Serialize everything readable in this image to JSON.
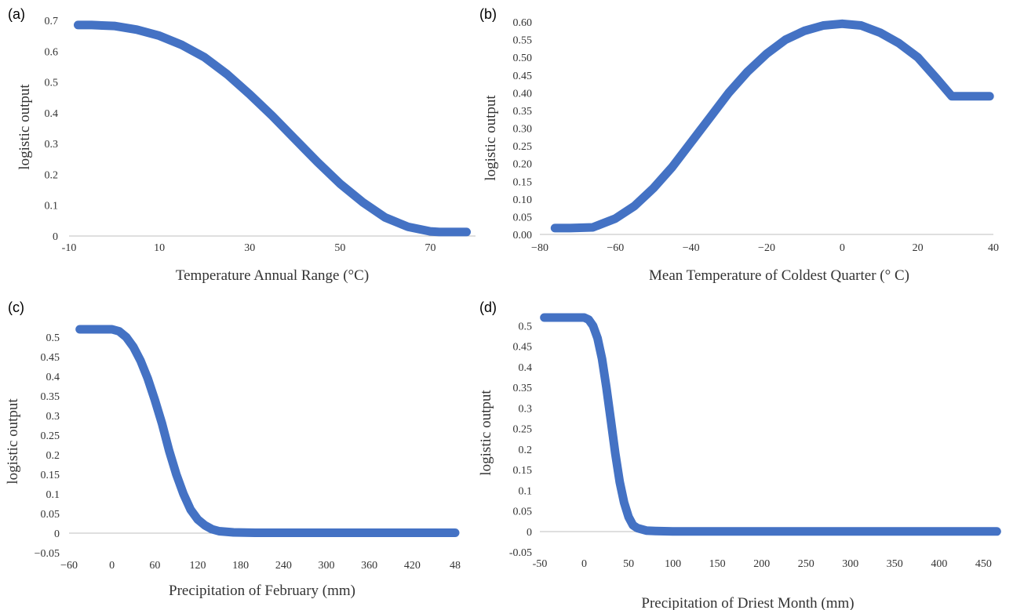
{
  "chart_data": [
    {
      "type": "line",
      "panel_label": "(a)",
      "xlabel": "Temperature Annual Range (°C)",
      "ylabel": "logistic output",
      "xlim": [
        -10,
        80
      ],
      "ylim": [
        0,
        0.7
      ],
      "x_ticks": [
        "-10",
        "10",
        "30",
        "50",
        "70"
      ],
      "y_ticks": [
        "0",
        "0.1",
        "0.2",
        "0.3",
        "0.4",
        "0.5",
        "0.6",
        "0.7"
      ],
      "color": "#4472c4",
      "series": [
        {
          "x": [
            -8,
            -5,
            0,
            5,
            10,
            15,
            20,
            25,
            30,
            35,
            40,
            45,
            50,
            55,
            60,
            65,
            70,
            72,
            75,
            78
          ],
          "y": [
            0.685,
            0.685,
            0.682,
            0.67,
            0.65,
            0.62,
            0.58,
            0.525,
            0.46,
            0.39,
            0.315,
            0.24,
            0.17,
            0.11,
            0.06,
            0.03,
            0.015,
            0.013,
            0.013,
            0.013
          ]
        }
      ]
    },
    {
      "type": "line",
      "panel_label": "(b)",
      "xlabel": "Mean Temperature of Coldest Quarter (° C)",
      "ylabel": "logistic output",
      "xlim": [
        -80,
        40
      ],
      "ylim": [
        0,
        0.6
      ],
      "x_ticks": [
        "−80",
        "−60",
        "−40",
        "−20",
        "0",
        "20",
        "40"
      ],
      "y_ticks": [
        "0.00",
        "0.05",
        "0.10",
        "0.15",
        "0.20",
        "0.25",
        "0.30",
        "0.35",
        "0.40",
        "0.45",
        "0.50",
        "0.55",
        "0.60"
      ],
      "color": "#4472c4",
      "series": [
        {
          "x": [
            -76,
            -72,
            -66,
            -60,
            -55,
            -50,
            -45,
            -40,
            -35,
            -30,
            -25,
            -20,
            -15,
            -10,
            -5,
            0,
            5,
            10,
            15,
            20,
            25,
            29,
            33,
            39
          ],
          "y": [
            0.018,
            0.018,
            0.02,
            0.045,
            0.08,
            0.13,
            0.19,
            0.26,
            0.33,
            0.4,
            0.46,
            0.51,
            0.55,
            0.575,
            0.59,
            0.595,
            0.59,
            0.57,
            0.54,
            0.5,
            0.44,
            0.39,
            0.39,
            0.39
          ]
        }
      ]
    },
    {
      "type": "line",
      "panel_label": "(c)",
      "xlabel": "Precipitation of February (mm)",
      "ylabel": "logistic output",
      "xlim": [
        -60,
        480
      ],
      "ylim": [
        -0.05,
        0.55
      ],
      "x_ticks": [
        "−60",
        "0",
        "60",
        "120",
        "180",
        "240",
        "300",
        "360",
        "420",
        "48"
      ],
      "y_ticks": [
        "−0.05",
        "0",
        "0.05",
        "0.1",
        "0.15",
        "0.2",
        "0.25",
        "0.3",
        "0.35",
        "0.4",
        "0.45",
        "0.5"
      ],
      "color": "#4472c4",
      "series": [
        {
          "x": [
            -45,
            -20,
            0,
            10,
            20,
            30,
            40,
            50,
            60,
            70,
            80,
            90,
            100,
            110,
            120,
            130,
            140,
            150,
            170,
            200,
            250,
            300,
            400,
            480
          ],
          "y": [
            0.52,
            0.52,
            0.52,
            0.515,
            0.5,
            0.475,
            0.44,
            0.395,
            0.34,
            0.28,
            0.21,
            0.15,
            0.1,
            0.06,
            0.035,
            0.02,
            0.01,
            0.005,
            0.002,
            0.001,
            0.001,
            0.001,
            0.001,
            0.001
          ]
        }
      ]
    },
    {
      "type": "line",
      "panel_label": "(d)",
      "xlabel": "Precipitation of Driest Month (mm)",
      "ylabel": "logistic output",
      "xlim": [
        -50,
        470
      ],
      "ylim": [
        -0.05,
        0.52
      ],
      "x_ticks": [
        "-50",
        "0",
        "50",
        "100",
        "150",
        "200",
        "250",
        "300",
        "350",
        "400",
        "450"
      ],
      "y_ticks": [
        "-0.05",
        "0",
        "0.05",
        "0.1",
        "0.15",
        "0.2",
        "0.25",
        "0.3",
        "0.35",
        "0.4",
        "0.45",
        "0.5"
      ],
      "color": "#4472c4",
      "series": [
        {
          "x": [
            -45,
            -20,
            0,
            5,
            10,
            15,
            20,
            25,
            30,
            35,
            40,
            45,
            50,
            55,
            60,
            70,
            80,
            100,
            150,
            250,
            350,
            465
          ],
          "y": [
            0.52,
            0.52,
            0.52,
            0.515,
            0.5,
            0.47,
            0.42,
            0.35,
            0.27,
            0.19,
            0.12,
            0.07,
            0.035,
            0.015,
            0.008,
            0.002,
            0.001,
            0,
            0,
            0,
            0,
            0
          ]
        }
      ]
    }
  ]
}
